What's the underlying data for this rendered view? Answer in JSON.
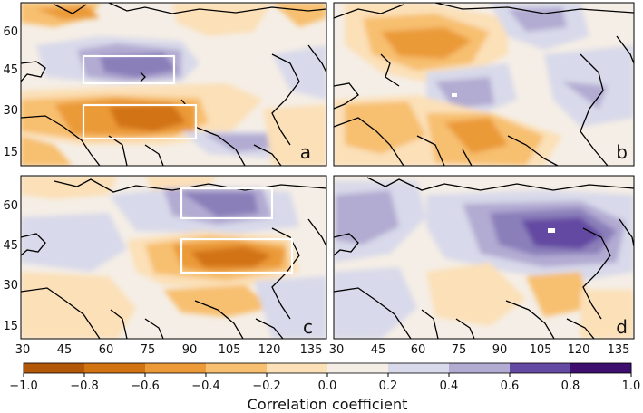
{
  "figure": {
    "colorbar": {
      "label": "Correlation coefficient",
      "ticks": [
        "−1.0",
        "−0.8",
        "−0.6",
        "−0.4",
        "−0.2",
        "0.0",
        "0.2",
        "0.4",
        "0.6",
        "0.8",
        "1.0"
      ],
      "colors": [
        "#b35806",
        "#d27313",
        "#eb9a37",
        "#f7bf70",
        "#fbe0b8",
        "#f5eee6",
        "#d8d9ea",
        "#b2abd2",
        "#8b7fba",
        "#644aa2",
        "#3e0f6f"
      ]
    },
    "lat_ticks": [
      "60",
      "45",
      "30",
      "15"
    ],
    "lon_ticks_left": [
      "30",
      "45",
      "60",
      "75",
      "90",
      "105",
      "120"
    ],
    "lon_ticks_right": [
      "135",
      "30",
      "45",
      "60",
      "75",
      "90",
      "105",
      "120",
      "135"
    ],
    "panels": [
      {
        "id": "a",
        "label": "a"
      },
      {
        "id": "b",
        "label": "b"
      },
      {
        "id": "c",
        "label": "c"
      },
      {
        "id": "d",
        "label": "d"
      }
    ]
  }
}
